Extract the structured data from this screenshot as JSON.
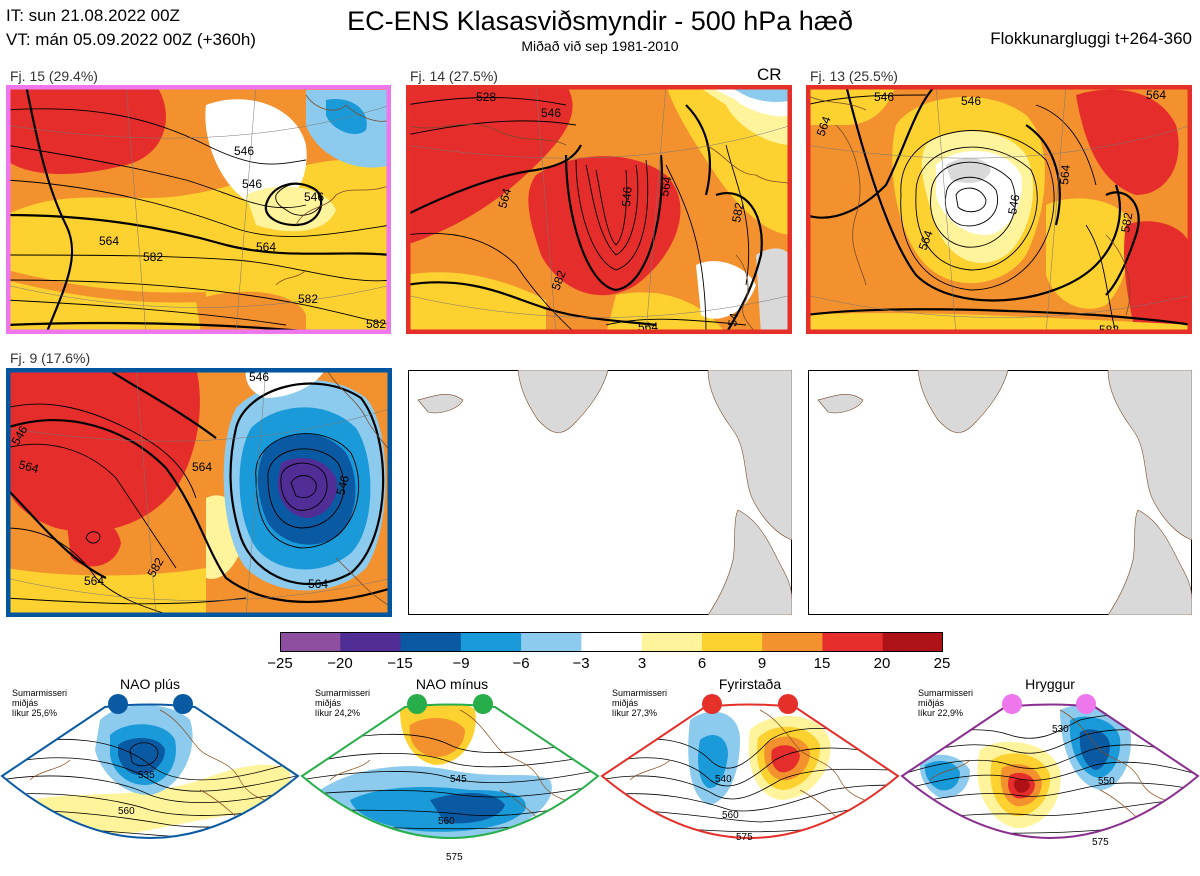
{
  "header": {
    "it_line": "IT: sun 21.08.2022 00Z",
    "vt_line": "VT: mán 05.09.2022 00Z  (+360h)",
    "title": "EC-ENS Klasasviðsmyndir - 500 hPa hæð",
    "subtitle": "Miðað við sep 1981-2010",
    "window": "Flokkunargluggi t+264-360"
  },
  "clusters": [
    {
      "label": "Fj. 15 (29.4%)",
      "border_color": "#ee77ee",
      "tag": "",
      "contours": [
        "546",
        "546",
        "546",
        "564",
        "582",
        "564",
        "582",
        "582"
      ]
    },
    {
      "label": "Fj. 14 (27.5%)",
      "border_color": "#e5302a",
      "tag": "CR",
      "contours": [
        "528",
        "546",
        "546",
        "564",
        "564",
        "582",
        "582",
        "564",
        "54"
      ]
    },
    {
      "label": "Fj. 13 (25.5%)",
      "border_color": "#e5302a",
      "tag": "",
      "contours": [
        "546",
        "546",
        "564",
        "546",
        "564",
        "564",
        "582",
        "582",
        "564"
      ]
    },
    {
      "label": "Fj. 9 (17.6%)",
      "border_color": "#00569e",
      "tag": "",
      "contours": [
        "546",
        "564",
        "564",
        "546",
        "564",
        "582",
        "564",
        "546"
      ]
    }
  ],
  "colorbar": {
    "ticks": [
      "−25",
      "−20",
      "−15",
      "−9",
      "−6",
      "−3",
      "3",
      "6",
      "9",
      "15",
      "20",
      "25"
    ],
    "colors": [
      "#8e4fa1",
      "#512d96",
      "#0a5aa3",
      "#1a9ad9",
      "#8ccbee",
      "#ffffff",
      "#fff39c",
      "#fdd12f",
      "#f4912f",
      "#e52e2b",
      "#ad1216"
    ]
  },
  "regimes": [
    {
      "name": "NAO plús",
      "season": "Sumarmisseri",
      "season2": "miðjás",
      "prob": "líkur 25,6%",
      "marker_color": "#0a5aa3",
      "border_color": "#0a5aa3",
      "contours": [
        "535",
        "560"
      ]
    },
    {
      "name": "NAO mínus",
      "season": "Sumarmisseri",
      "season2": "miðjás",
      "prob": "líkur 24,2%",
      "marker_color": "#27ae4a",
      "border_color": "#27ae4a",
      "contours": [
        "545",
        "560",
        "575"
      ]
    },
    {
      "name": "Fyrirstaða",
      "season": "Sumarmisseri",
      "season2": "miðjás",
      "prob": "líkur 27,3%",
      "marker_color": "#e5302a",
      "border_color": "#e5302a",
      "contours": [
        "540",
        "560",
        "575"
      ]
    },
    {
      "name": "Hryggur",
      "season": "Sumarmisseri",
      "season2": "miðjás",
      "prob": "líkur 22,9%",
      "marker_color": "#ee77ee",
      "border_color": "#8a2e8f",
      "contours": [
        "530",
        "550",
        "575"
      ]
    }
  ]
}
